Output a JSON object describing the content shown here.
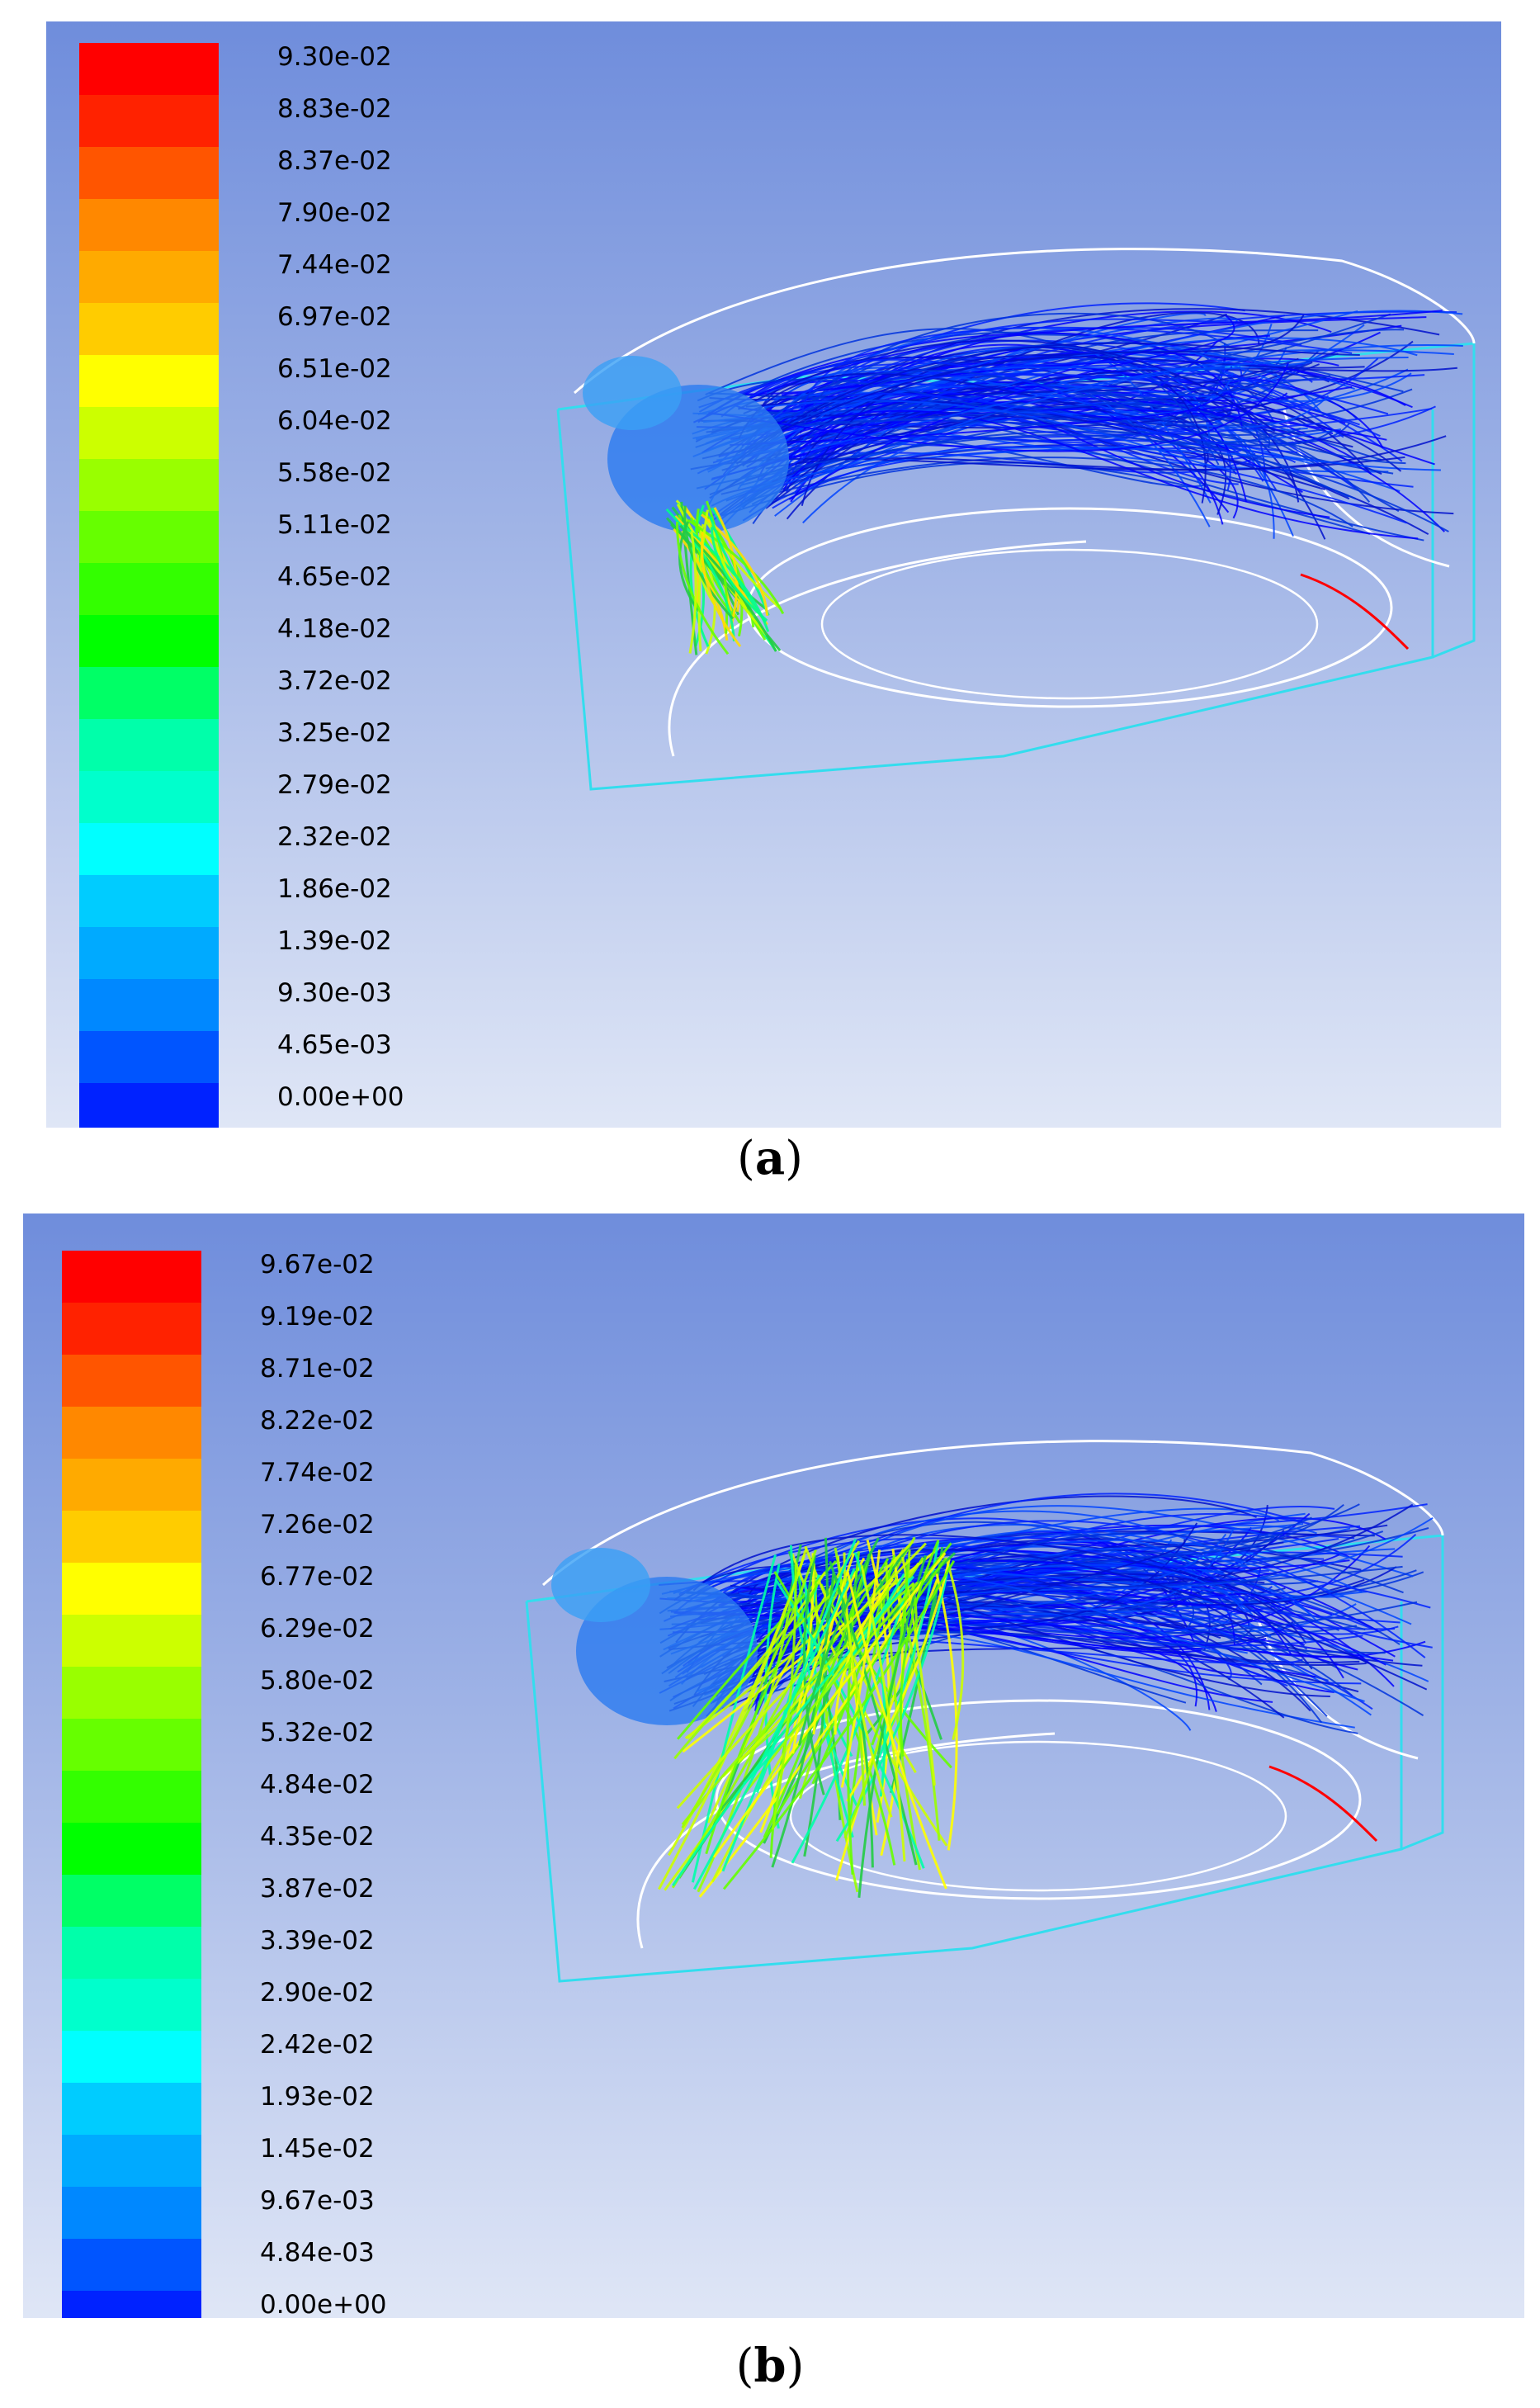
{
  "panels": [
    {
      "id": "a",
      "caption_letter": "a",
      "colormap": [
        "#0000ff",
        "#0022ff",
        "#0055ff",
        "#0088ff",
        "#00aaff",
        "#00ccff",
        "#00ffff",
        "#00ffcc",
        "#00ffaa",
        "#00ff66",
        "#00ff00",
        "#33ff00",
        "#66ff00",
        "#99ff00",
        "#ccff00",
        "#ffff00",
        "#ffcc00",
        "#ffaa00",
        "#ff8800",
        "#ff5500",
        "#ff2200",
        "#ff0000"
      ],
      "ticks": [
        "9.30e-02",
        "8.83e-02",
        "8.37e-02",
        "7.90e-02",
        "7.44e-02",
        "6.97e-02",
        "6.51e-02",
        "6.04e-02",
        "5.58e-02",
        "5.11e-02",
        "4.65e-02",
        "4.18e-02",
        "3.72e-02",
        "3.25e-02",
        "2.79e-02",
        "2.32e-02",
        "1.86e-02",
        "1.39e-02",
        "9.30e-03",
        "4.65e-03",
        "0.00e+00"
      ]
    },
    {
      "id": "b",
      "caption_letter": "b",
      "colormap": [
        "#0000ff",
        "#0022ff",
        "#0055ff",
        "#0088ff",
        "#00aaff",
        "#00ccff",
        "#00ffff",
        "#00ffcc",
        "#00ffaa",
        "#00ff66",
        "#00ff00",
        "#33ff00",
        "#66ff00",
        "#99ff00",
        "#ccff00",
        "#ffff00",
        "#ffcc00",
        "#ffaa00",
        "#ff8800",
        "#ff5500",
        "#ff2200",
        "#ff0000"
      ],
      "ticks": [
        "9.67e-02",
        "9.19e-02",
        "8.71e-02",
        "8.22e-02",
        "7.74e-02",
        "7.26e-02",
        "6.77e-02",
        "6.29e-02",
        "5.80e-02",
        "5.32e-02",
        "4.84e-02",
        "4.35e-02",
        "3.87e-02",
        "3.39e-02",
        "2.90e-02",
        "2.42e-02",
        "1.93e-02",
        "1.45e-02",
        "9.67e-03",
        "4.84e-03",
        "0.00e+00"
      ]
    }
  ],
  "colors": {
    "wireframe_white": "#ffffff",
    "wireframe_cyan": "#33ddee",
    "streamline_blue": "#0022ee",
    "highlight_red": "#ff0000"
  }
}
